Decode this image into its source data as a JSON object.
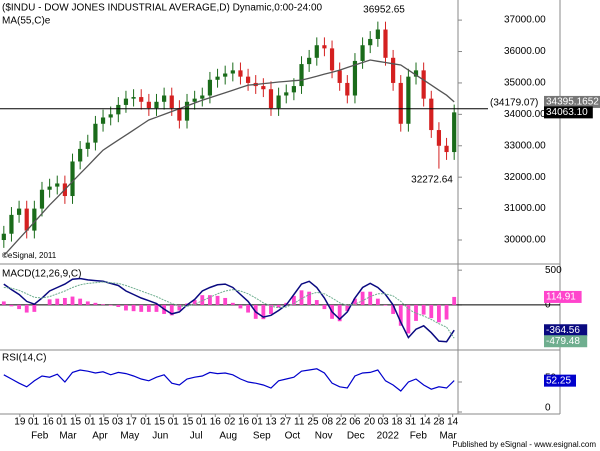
{
  "chart_data": [
    {
      "type": "candlestick",
      "title": "($INDU - DOW JONES INDUSTRIAL AVERAGE,D) Dynamic,0:00-24:00",
      "ma_label": "MA(55,C)e",
      "copyright": "©eSignal, 2011",
      "high_label": "36952.65",
      "low_label": "32272.64",
      "xlim": [
        -0.5,
        59.5
      ],
      "xticks": [
        {
          "value": 2.1,
          "label": "19"
        },
        {
          "value": 3.9,
          "label": "01"
        },
        {
          "value": 5.8,
          "label": "16"
        },
        {
          "value": 7.6,
          "label": "01"
        },
        {
          "value": 9.4,
          "label": "15"
        },
        {
          "value": 11.3,
          "label": "01"
        },
        {
          "value": 13.1,
          "label": "15"
        },
        {
          "value": 14.9,
          "label": "03"
        },
        {
          "value": 16.7,
          "label": "17"
        },
        {
          "value": 18.6,
          "label": "01"
        },
        {
          "value": 20.4,
          "label": "15"
        },
        {
          "value": 22.2,
          "label": "01"
        },
        {
          "value": 24.1,
          "label": "15"
        },
        {
          "value": 25.9,
          "label": "01"
        },
        {
          "value": 27.7,
          "label": "16"
        },
        {
          "value": 29.6,
          "label": "02"
        },
        {
          "value": 31.4,
          "label": "16"
        },
        {
          "value": 33.2,
          "label": "01"
        },
        {
          "value": 35.0,
          "label": "13"
        },
        {
          "value": 36.9,
          "label": "27"
        },
        {
          "value": 38.7,
          "label": "11"
        },
        {
          "value": 40.5,
          "label": "25"
        },
        {
          "value": 42.4,
          "label": "08"
        },
        {
          "value": 44.2,
          "label": "22"
        },
        {
          "value": 46.0,
          "label": "06"
        },
        {
          "value": 47.9,
          "label": "20"
        },
        {
          "value": 49.7,
          "label": "03"
        },
        {
          "value": 51.5,
          "label": "18"
        },
        {
          "value": 53.3,
          "label": "31"
        },
        {
          "value": 55.2,
          "label": "14"
        },
        {
          "value": 57.0,
          "label": "28"
        },
        {
          "value": 58.8,
          "label": "14"
        }
      ],
      "month_ticks": [
        {
          "value": 4.7,
          "label": "Feb"
        },
        {
          "value": 8.4,
          "label": "Mar"
        },
        {
          "value": 12.6,
          "label": "Apr"
        },
        {
          "value": 16.5,
          "label": "May"
        },
        {
          "value": 20.5,
          "label": "Jun"
        },
        {
          "value": 25.2,
          "label": "Jul"
        },
        {
          "value": 29.4,
          "label": "Aug"
        },
        {
          "value": 33.8,
          "label": "Sep"
        },
        {
          "value": 37.8,
          "label": "Oct"
        },
        {
          "value": 41.9,
          "label": "Nov"
        },
        {
          "value": 46.1,
          "label": "Dec"
        },
        {
          "value": 50.3,
          "label": "2022"
        },
        {
          "value": 54.3,
          "label": "Feb"
        },
        {
          "value": 58.2,
          "label": "Mar"
        }
      ],
      "ylim": [
        29300,
        37640
      ],
      "yticks": [
        {
          "value": 30000,
          "label": "30000.00"
        },
        {
          "value": 31000,
          "label": "31000.00"
        },
        {
          "value": 32000,
          "label": "32000.00"
        },
        {
          "value": 33000,
          "label": "33000.00"
        },
        {
          "value": 34000,
          "label": "34000.00"
        },
        {
          "value": 35000,
          "label": "35000.00"
        },
        {
          "value": 36000,
          "label": "36000.00"
        },
        {
          "value": 37000,
          "label": "37000.00"
        }
      ],
      "up_color": "#1a6b1a",
      "down_color": "#d42020",
      "open": [
        30000,
        30200,
        30800,
        31000,
        30300,
        31000,
        31600,
        31700,
        31800,
        31400,
        32500,
        32900,
        33100,
        33700,
        33900,
        34000,
        34300,
        34500,
        34550,
        34400,
        34200,
        34400,
        34600,
        34200,
        33800,
        34400,
        34500,
        34600,
        35100,
        35200,
        35300,
        35400,
        35200,
        35000,
        34900,
        34800,
        34200,
        34600,
        34700,
        34900,
        35600,
        35800,
        36200,
        36100,
        35400,
        35000,
        34600,
        35700,
        36200,
        36400,
        36700,
        35800,
        35000,
        33700,
        35200,
        35400,
        34500,
        33500,
        33000,
        32800
      ],
      "high": [
        30450,
        31050,
        31250,
        31250,
        31250,
        31850,
        31950,
        32050,
        32050,
        32750,
        33150,
        33350,
        33950,
        34150,
        34250,
        34550,
        34750,
        34800,
        34800,
        34650,
        34650,
        34850,
        34850,
        34450,
        34650,
        34750,
        34850,
        35350,
        35450,
        35550,
        35650,
        35650,
        35450,
        35250,
        35150,
        35050,
        34850,
        34950,
        35150,
        35850,
        36050,
        36450,
        36450,
        36350,
        35650,
        35250,
        35950,
        36450,
        36650,
        36952.65,
        36950,
        36050,
        35250,
        35450,
        35650,
        35650,
        34750,
        33750,
        33250,
        34310
      ],
      "low": [
        29750,
        29950,
        30550,
        30050,
        30050,
        30750,
        31350,
        31450,
        31150,
        31150,
        32250,
        32650,
        32850,
        33450,
        33650,
        33750,
        34050,
        34250,
        34150,
        33950,
        33950,
        34150,
        33950,
        33550,
        33550,
        34150,
        34250,
        34350,
        34850,
        34950,
        35050,
        34950,
        34750,
        34650,
        34550,
        33950,
        33950,
        34350,
        34450,
        34650,
        35350,
        35550,
        35850,
        35150,
        34750,
        34350,
        34350,
        35450,
        35950,
        36150,
        35550,
        34750,
        33450,
        33450,
        34950,
        34250,
        33250,
        32272.64,
        32550,
        32550
      ],
      "close": [
        30200,
        30800,
        31000,
        30300,
        31000,
        31600,
        31700,
        31800,
        31400,
        32500,
        32900,
        33100,
        33700,
        33900,
        34000,
        34300,
        34500,
        34550,
        34400,
        34200,
        34400,
        34600,
        34200,
        33800,
        34400,
        34500,
        34600,
        35100,
        35200,
        35300,
        35400,
        35200,
        35000,
        34900,
        34800,
        34200,
        34600,
        34700,
        34900,
        35600,
        35800,
        36200,
        36100,
        35400,
        35000,
        34600,
        35700,
        36200,
        36400,
        36700,
        35800,
        35000,
        33700,
        35200,
        35400,
        34500,
        33500,
        33000,
        32800,
        34063.1
      ],
      "ma": {
        "color": "#555555",
        "values": [
          29500,
          29770,
          30040,
          30300,
          30570,
          30840,
          31110,
          31360,
          31610,
          31860,
          32110,
          32360,
          32610,
          32860,
          33020,
          33180,
          33340,
          33500,
          33660,
          33820,
          33910,
          34000,
          34090,
          34180,
          34270,
          34360,
          34450,
          34530,
          34610,
          34690,
          34770,
          34850,
          34930,
          34950,
          34980,
          35000,
          35030,
          35050,
          35070,
          35090,
          35150,
          35210,
          35280,
          35340,
          35410,
          35490,
          35570,
          35650,
          35730,
          35690,
          35650,
          35610,
          35570,
          35410,
          35250,
          35090,
          34930,
          34770,
          34610,
          34395.1652
        ]
      },
      "hline": {
        "value": 34179.07,
        "label": "(34179.07)"
      },
      "last_labels": [
        {
          "value": 34395.1652,
          "label": "34395.1652",
          "color": "#777777"
        },
        {
          "value": 34063.1,
          "label": "34063.10",
          "color": "#000000"
        }
      ]
    },
    {
      "type": "macd",
      "label": "MACD(12,26,9,C)",
      "xlim": [
        -0.5,
        59.5
      ],
      "ylim": [
        -620,
        560
      ],
      "yticks": [
        0,
        500
      ],
      "series": [
        {
          "color": "#0a0a80",
          "values": [
            300,
            220,
            150,
            50,
            10,
            100,
            200,
            250,
            300,
            370,
            380,
            360,
            350,
            340,
            310,
            280,
            200,
            150,
            100,
            60,
            20,
            -60,
            -130,
            -100,
            0,
            80,
            200,
            250,
            290,
            300,
            250,
            150,
            50,
            -100,
            -175,
            -150,
            -80,
            0,
            150,
            300,
            340,
            250,
            100,
            -100,
            -205,
            -100,
            100,
            250,
            310,
            250,
            150,
            0,
            -250,
            -470,
            -350,
            -300,
            -400,
            -520,
            -530,
            -364.56
          ]
        },
        {
          "color": "#6fae8f",
          "values": [
            250,
            240,
            210,
            160,
            110,
            100,
            120,
            160,
            200,
            250,
            290,
            310,
            320,
            330,
            320,
            310,
            280,
            240,
            200,
            160,
            120,
            70,
            20,
            -20,
            -20,
            10,
            60,
            110,
            160,
            200,
            220,
            200,
            160,
            100,
            30,
            -20,
            -40,
            -30,
            20,
            90,
            150,
            180,
            160,
            100,
            30,
            -10,
            10,
            60,
            120,
            160,
            160,
            130,
            50,
            -60,
            -120,
            -160,
            -210,
            -270,
            -320,
            -479.48
          ]
        }
      ],
      "histogram": {
        "color": "#ff44cc",
        "values": [
          50,
          -20,
          -60,
          -110,
          -100,
          0,
          80,
          90,
          100,
          120,
          90,
          50,
          30,
          10,
          -10,
          -30,
          -80,
          -90,
          -100,
          -100,
          -100,
          -130,
          -150,
          -80,
          20,
          70,
          140,
          140,
          130,
          100,
          30,
          -50,
          -110,
          -200,
          -205,
          -130,
          -40,
          30,
          130,
          210,
          190,
          70,
          -60,
          -200,
          -235,
          -90,
          90,
          190,
          190,
          90,
          -10,
          -130,
          -300,
          -410,
          -230,
          -140,
          -190,
          -250,
          -210,
          114.91
        ]
      },
      "last_labels": [
        {
          "value": 114.91,
          "label": "114.91",
          "color": "#ff44cc"
        },
        {
          "value": -364.56,
          "label": "-364.56",
          "color": "#0a0a80"
        },
        {
          "value": -479.48,
          "label": "-479.48",
          "color": "#6fae8f"
        }
      ]
    },
    {
      "type": "line",
      "label": "RSI(14,C)",
      "xlim": [
        -0.5,
        59.5
      ],
      "ylim": [
        0,
        100
      ],
      "yticks": [
        0,
        50
      ],
      "series": [
        {
          "color": "#0000cc",
          "values": [
            62,
            55,
            48,
            42,
            52,
            60,
            58,
            63,
            50,
            66,
            70,
            68,
            65,
            67,
            62,
            66,
            64,
            60,
            55,
            52,
            58,
            62,
            48,
            45,
            55,
            58,
            60,
            66,
            64,
            65,
            62,
            55,
            50,
            48,
            45,
            40,
            52,
            55,
            58,
            68,
            70,
            72,
            65,
            48,
            42,
            40,
            60,
            65,
            66,
            70,
            52,
            45,
            35,
            50,
            55,
            45,
            38,
            42,
            40,
            52.25
          ]
        }
      ],
      "last_labels": [
        {
          "value": 52.25,
          "label": "52.25",
          "color": "#0000cc"
        }
      ]
    }
  ],
  "footer": "Published by eSignal - www.esignal.com"
}
